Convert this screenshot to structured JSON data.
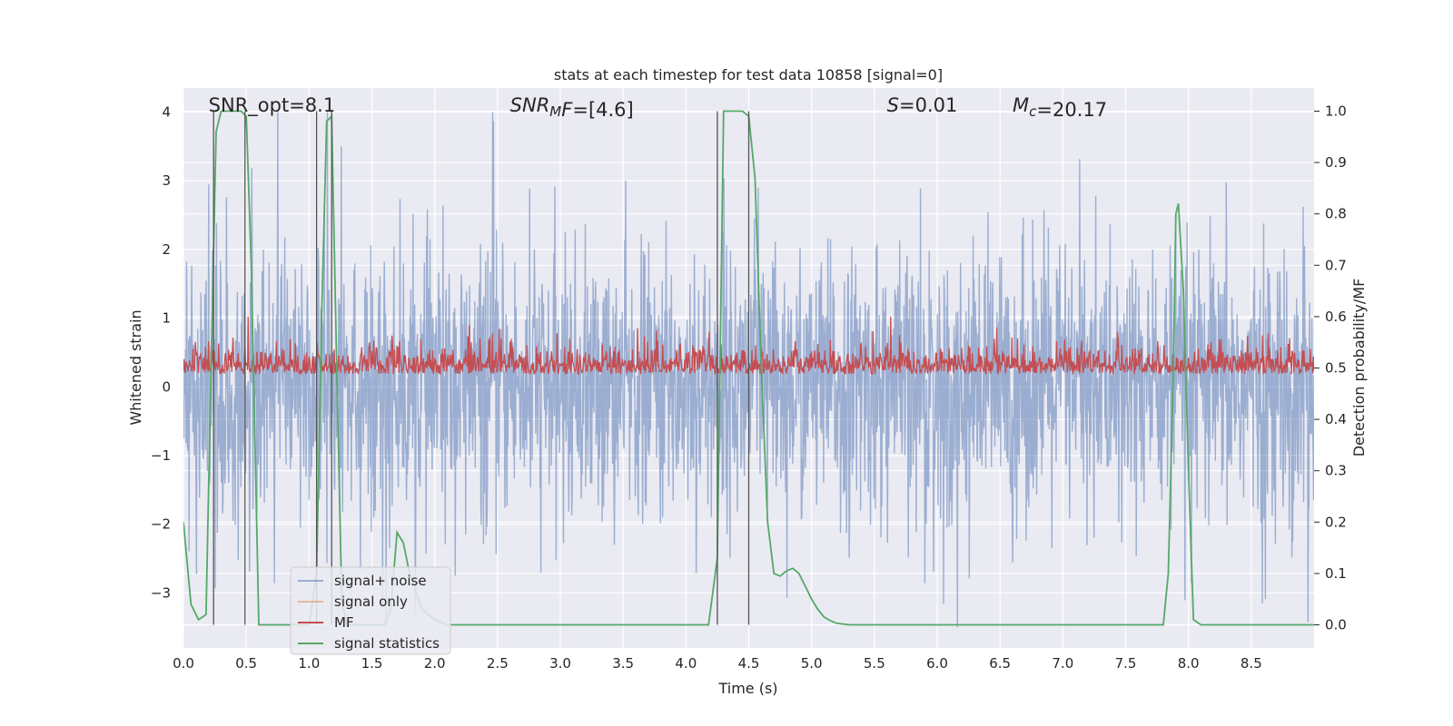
{
  "chart_data": {
    "type": "line",
    "title": "stats at each timestep for test data 10858 [signal=0]",
    "xlabel": "Time (s)",
    "ylabel": "Whitened strain",
    "ylabel_right": "Detection probability/MF",
    "xlim": [
      0.0,
      9.0
    ],
    "ylim": [
      -3.8,
      4.35
    ],
    "ylim_right": [
      -0.045,
      1.045
    ],
    "xticks": [
      "0.0",
      "0.5",
      "1.0",
      "1.5",
      "2.0",
      "2.5",
      "3.0",
      "3.5",
      "4.0",
      "4.5",
      "5.0",
      "5.5",
      "6.0",
      "6.5",
      "7.0",
      "7.5",
      "8.0",
      "8.5"
    ],
    "xtick_values": [
      0.0,
      0.5,
      1.0,
      1.5,
      2.0,
      2.5,
      3.0,
      3.5,
      4.0,
      4.5,
      5.0,
      5.5,
      6.0,
      6.5,
      7.0,
      7.5,
      8.0,
      8.5
    ],
    "yticks": [
      "4",
      "3",
      "2",
      "1",
      "0",
      "−1",
      "−2",
      "−3"
    ],
    "ytick_values": [
      4,
      3,
      2,
      1,
      0,
      -1,
      -2,
      -3
    ],
    "yticks_right": [
      "1.0",
      "0.9",
      "0.8",
      "0.7",
      "0.6",
      "0.5",
      "0.4",
      "0.3",
      "0.2",
      "0.1",
      "0.0"
    ],
    "ytick_values_right": [
      1.0,
      0.9,
      0.8,
      0.7,
      0.6,
      0.5,
      0.4,
      0.3,
      0.2,
      0.1,
      0.0
    ],
    "grid": true,
    "legend": "lower-left",
    "annotations": [
      {
        "parts": [
          {
            "t": "SNR_opt=8.1",
            "italic": false
          }
        ],
        "x": 0.2
      },
      {
        "parts": [
          {
            "t": "SNR",
            "italic": true
          },
          {
            "t": "M",
            "italic": true,
            "sub": true
          },
          {
            "t": "F",
            "italic": true
          },
          {
            "t": "=[4.6]",
            "italic": false
          }
        ],
        "x": 2.6
      },
      {
        "parts": [
          {
            "t": "S",
            "italic": true
          },
          {
            "t": "=0.01",
            "italic": false
          }
        ],
        "x": 5.6
      },
      {
        "parts": [
          {
            "t": "M",
            "italic": true
          },
          {
            "t": "c",
            "italic": true,
            "sub": true
          },
          {
            "t": "=20.17",
            "italic": false
          }
        ],
        "x": 6.6
      }
    ],
    "series": [
      {
        "name": "signal+ noise",
        "color": "#4c72b0",
        "opacity": 0.5,
        "axis": "left",
        "description_range": [
          -3.5,
          4.0
        ],
        "envelope": {
          "upper_typical": 1.7,
          "lower_typical": -1.9,
          "max": 4.0,
          "min": -3.5
        }
      },
      {
        "name": "signal only",
        "color": "#dd8452",
        "opacity": 0.5,
        "axis": "left",
        "values": []
      },
      {
        "name": "MF",
        "color": "#c44e52",
        "axis": "right",
        "baseline": 0.5,
        "range": [
          0.48,
          0.6
        ]
      },
      {
        "name": "signal statistics",
        "color": "#55a868",
        "axis": "right",
        "x": [
          0.0,
          0.06,
          0.12,
          0.18,
          0.22,
          0.26,
          0.3,
          0.34,
          0.4,
          0.46,
          0.5,
          0.54,
          0.6,
          0.62,
          0.7,
          0.8,
          0.9,
          1.0,
          1.06,
          1.1,
          1.14,
          1.18,
          1.22,
          1.26,
          1.3,
          1.4,
          1.5,
          1.6,
          1.65,
          1.7,
          1.75,
          1.8,
          1.9,
          2.0,
          2.1,
          2.2,
          3.0,
          4.0,
          4.18,
          4.25,
          4.3,
          4.35,
          4.45,
          4.5,
          4.55,
          4.6,
          4.65,
          4.7,
          4.75,
          4.8,
          4.85,
          4.9,
          4.95,
          5.0,
          5.05,
          5.1,
          5.15,
          5.2,
          5.3,
          5.5,
          6.0,
          7.0,
          7.8,
          7.84,
          7.88,
          7.9,
          7.92,
          7.96,
          8.0,
          8.04,
          8.1,
          8.3,
          9.0
        ],
        "y": [
          0.2,
          0.04,
          0.01,
          0.02,
          0.5,
          0.96,
          1.0,
          1.0,
          1.0,
          1.0,
          0.99,
          0.7,
          0.0,
          0.0,
          0.0,
          0.0,
          0.0,
          0.0,
          0.1,
          0.6,
          0.98,
          0.99,
          0.5,
          0.05,
          0.0,
          0.0,
          0.0,
          0.0,
          0.03,
          0.18,
          0.16,
          0.1,
          0.03,
          0.01,
          0.0,
          0.0,
          0.0,
          0.0,
          0.0,
          0.13,
          1.0,
          1.0,
          1.0,
          0.99,
          0.87,
          0.5,
          0.2,
          0.1,
          0.095,
          0.105,
          0.11,
          0.1,
          0.075,
          0.05,
          0.03,
          0.015,
          0.008,
          0.003,
          0.0,
          0.0,
          0.0,
          0.0,
          0.0,
          0.1,
          0.5,
          0.8,
          0.82,
          0.65,
          0.3,
          0.01,
          0.0,
          0.0,
          0.0
        ]
      }
    ],
    "vertical_lines": [
      0.24,
      0.49,
      1.06,
      1.18,
      4.25,
      4.5
    ]
  }
}
